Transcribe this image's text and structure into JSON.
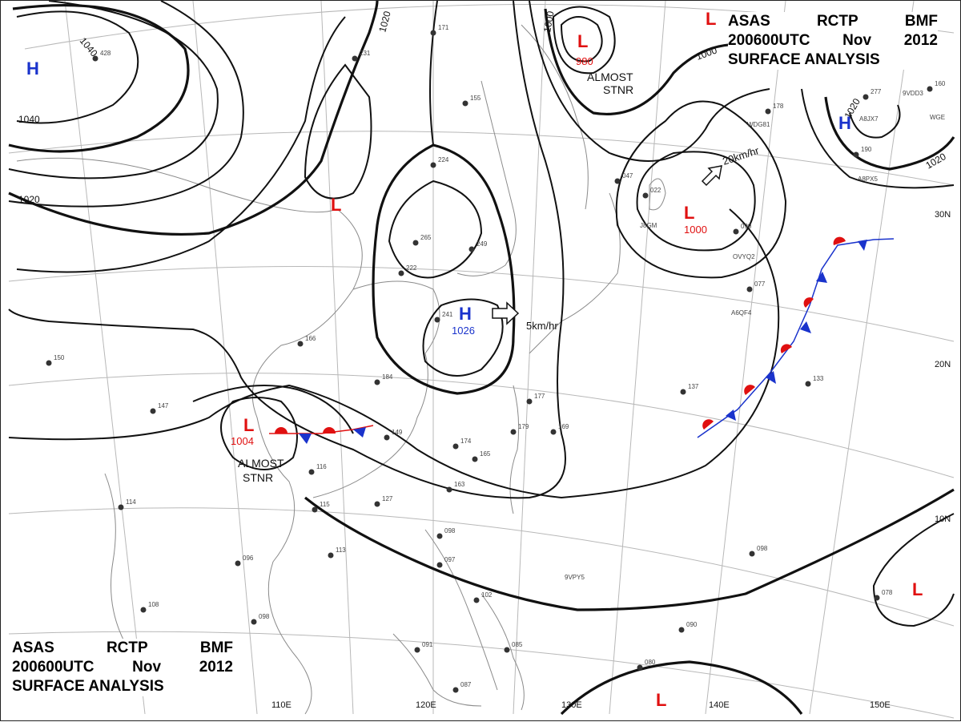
{
  "title": {
    "agency": [
      "ASAS",
      "RCTP",
      "BMF"
    ],
    "time": [
      "200600UTC",
      "Nov",
      "2012"
    ],
    "product": "SURFACE ANALYSIS"
  },
  "lat_labels": [
    "30N",
    "20N",
    "10N"
  ],
  "lon_labels": [
    "110E",
    "120E",
    "130E",
    "140E",
    "150E"
  ],
  "isobar_labels": [
    "1040",
    "1040",
    "1020",
    "1020",
    "1020",
    "1000",
    "1000",
    "1020"
  ],
  "pressure_centers": [
    {
      "type": "H",
      "value": "",
      "color": "#1a33cc"
    },
    {
      "type": "L",
      "value": "980",
      "color": "#e01010",
      "note": "ALMOST STNR"
    },
    {
      "type": "L",
      "value": "",
      "color": "#e01010"
    },
    {
      "type": "H",
      "value": "",
      "color": "#1a33cc"
    },
    {
      "type": "L",
      "value": "1000",
      "color": "#e01010",
      "motion": "20km/hr"
    },
    {
      "type": "H",
      "value": "1026",
      "color": "#1a33cc",
      "motion": "5km/hr"
    },
    {
      "type": "L",
      "value": "1004",
      "color": "#e01010",
      "note": "ALMOST STNR"
    },
    {
      "type": "L",
      "value": "",
      "color": "#e01010"
    },
    {
      "type": "L",
      "value": "",
      "color": "#e01010"
    },
    {
      "type": "L",
      "value": "",
      "color": "#e01010"
    }
  ],
  "notes": {
    "almost_stnr_top": [
      "ALMOST",
      "STNR"
    ],
    "almost_stnr_left": [
      "ALMOST",
      "STNR"
    ],
    "motion_east": "20km/hr",
    "motion_high": "5km/hr"
  },
  "station_obs": [
    "428",
    "231",
    "171",
    "155",
    "224",
    "265",
    "249",
    "222",
    "241",
    "166",
    "184",
    "174",
    "165",
    "163",
    "127",
    "098",
    "097",
    "102",
    "085",
    "087",
    "091",
    "096",
    "113",
    "098",
    "108",
    "114",
    "150",
    "147",
    "137",
    "133",
    "098",
    "090",
    "080",
    "078",
    "022",
    "090",
    "077",
    "047",
    "149",
    "116",
    "115",
    "177",
    "179",
    "169",
    "160",
    "178",
    "190",
    "277"
  ],
  "ship_ids": [
    "9VPY5",
    "A8PX5",
    "OVYQ2",
    "WDG81",
    "A8JX7",
    "WGE",
    "9VDD3",
    "A6QF4",
    "J8GM"
  ],
  "colors": {
    "high": "#1a33cc",
    "low": "#e01010",
    "warm_front": "#e01010",
    "cold_front": "#1a33cc",
    "isobar": "#111111",
    "grid": "#b8b8b8",
    "coast": "#8a8a8a"
  }
}
